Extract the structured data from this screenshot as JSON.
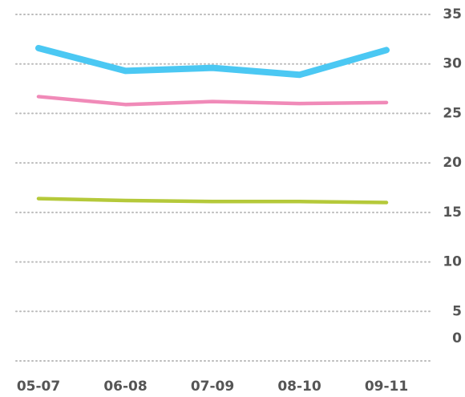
{
  "chart_data": {
    "type": "line",
    "categories": [
      "05-07",
      "06-08",
      "07-09",
      "08-10",
      "09-11"
    ],
    "series": [
      {
        "color": "#4bc8f3",
        "values": [
          31.6,
          29.3,
          29.6,
          28.9,
          31.4
        ]
      },
      {
        "color": "#f08ab8",
        "values": [
          26.7,
          25.9,
          26.2,
          26.0,
          26.1
        ]
      },
      {
        "color": "#b5c93a",
        "values": [
          16.4,
          16.2,
          16.1,
          16.1,
          16.0
        ]
      }
    ],
    "ylim": [
      0,
      35
    ],
    "yticks": [
      0,
      5,
      10,
      15,
      20,
      25,
      30,
      35
    ],
    "grid": true
  }
}
